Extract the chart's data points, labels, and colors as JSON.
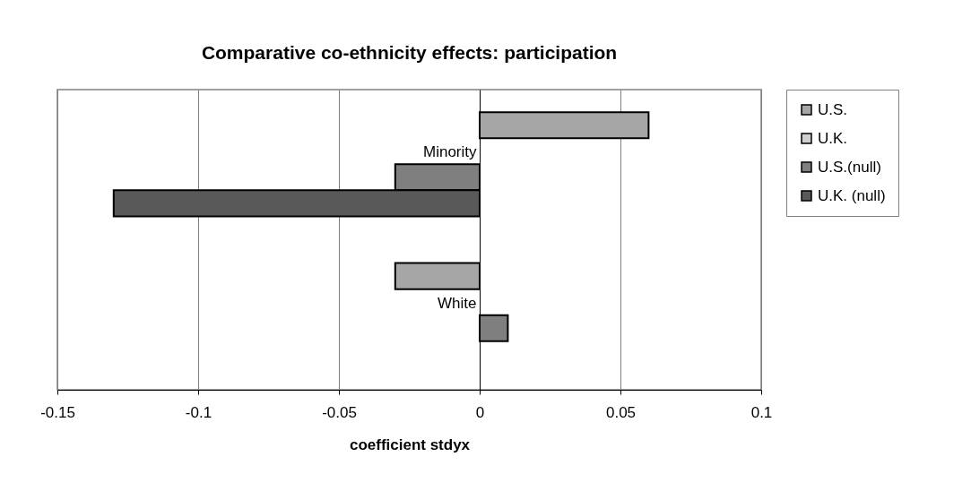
{
  "chart_data": {
    "type": "bar",
    "orientation": "horizontal",
    "title": "Comparative co-ethnicity effects: participation",
    "xlabel": "coefficient stdyx",
    "categories": [
      "Minority",
      "White"
    ],
    "series": [
      {
        "name": "U.S.",
        "color": "#a6a6a6",
        "values": [
          0.06,
          -0.03
        ]
      },
      {
        "name": "U.K.",
        "color": "#d0d0d0",
        "values": [
          null,
          null
        ]
      },
      {
        "name": "U.S.(null)",
        "color": "#7f7f7f",
        "values": [
          -0.03,
          0.01
        ]
      },
      {
        "name": "U.K. (null)",
        "color": "#595959",
        "values": [
          -0.13,
          null
        ]
      }
    ],
    "xlim": [
      -0.15,
      0.1
    ],
    "xticks": [
      -0.15,
      -0.1,
      -0.05,
      0,
      0.05,
      0.1
    ],
    "grid": "x",
    "legend": "right"
  }
}
